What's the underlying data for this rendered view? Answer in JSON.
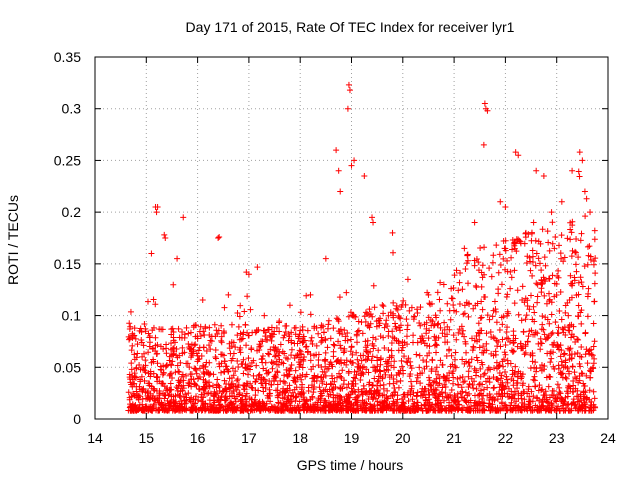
{
  "chart_data": {
    "type": "scatter",
    "title": "Day 171 of 2015, Rate Of TEC Index for receiver lyr1",
    "xlabel": "GPS time / hours",
    "ylabel": "ROTI / TECUs",
    "xlim": [
      14,
      24
    ],
    "ylim": [
      0,
      0.35
    ],
    "grid": true,
    "marker": "+",
    "color": "#ff0000",
    "x_ticks": [
      14,
      15,
      16,
      17,
      18,
      19,
      20,
      21,
      22,
      23,
      24
    ],
    "x_tick_labels": [
      "14",
      "15",
      "16",
      "17",
      "18",
      "19",
      "20",
      "21",
      "22",
      "23",
      "24"
    ],
    "y_ticks": [
      0,
      0.05,
      0.1,
      0.15,
      0.2,
      0.25,
      0.3,
      0.35
    ],
    "y_tick_labels": [
      "0",
      "0.05",
      "0.1",
      "0.15",
      "0.2",
      "0.25",
      "0.3",
      "0.35"
    ],
    "series": [
      {
        "name": "ROTI",
        "x_range": [
          14.65,
          23.75
        ],
        "points": [
          [
            15.18,
            0.205
          ],
          [
            15.2,
            0.2
          ],
          [
            15.22,
            0.205
          ],
          [
            15.35,
            0.178
          ],
          [
            15.37,
            0.175
          ],
          [
            15.72,
            0.195
          ],
          [
            16.4,
            0.175
          ],
          [
            16.42,
            0.176
          ],
          [
            16.95,
            0.142
          ],
          [
            17.0,
            0.14
          ],
          [
            18.7,
            0.26
          ],
          [
            18.75,
            0.24
          ],
          [
            18.78,
            0.22
          ],
          [
            18.95,
            0.323
          ],
          [
            18.97,
            0.318
          ],
          [
            18.93,
            0.3
          ],
          [
            19.0,
            0.245
          ],
          [
            19.05,
            0.25
          ],
          [
            19.25,
            0.235
          ],
          [
            19.4,
            0.195
          ],
          [
            19.42,
            0.19
          ],
          [
            21.6,
            0.305
          ],
          [
            21.62,
            0.3
          ],
          [
            21.65,
            0.298
          ],
          [
            21.58,
            0.265
          ],
          [
            22.2,
            0.258
          ],
          [
            22.25,
            0.255
          ],
          [
            22.6,
            0.24
          ],
          [
            22.75,
            0.235
          ],
          [
            23.3,
            0.24
          ],
          [
            23.45,
            0.258
          ],
          [
            23.5,
            0.25
          ],
          [
            23.55,
            0.22
          ],
          [
            23.65,
            0.2
          ],
          [
            22.9,
            0.2
          ],
          [
            23.1,
            0.21
          ],
          [
            22.4,
            0.18
          ],
          [
            21.9,
            0.21
          ],
          [
            22.0,
            0.205
          ],
          [
            15.1,
            0.16
          ],
          [
            15.6,
            0.155
          ],
          [
            16.1,
            0.115
          ],
          [
            16.6,
            0.12
          ],
          [
            17.3,
            0.1
          ],
          [
            17.8,
            0.11
          ],
          [
            18.2,
            0.12
          ],
          [
            18.5,
            0.155
          ],
          [
            20.1,
            0.135
          ],
          [
            20.5,
            0.12
          ],
          [
            21.2,
            0.165
          ],
          [
            20.8,
            0.13
          ],
          [
            19.8,
            0.18
          ],
          [
            21.4,
            0.19
          ],
          [
            22.55,
            0.19
          ]
        ]
      }
    ]
  }
}
